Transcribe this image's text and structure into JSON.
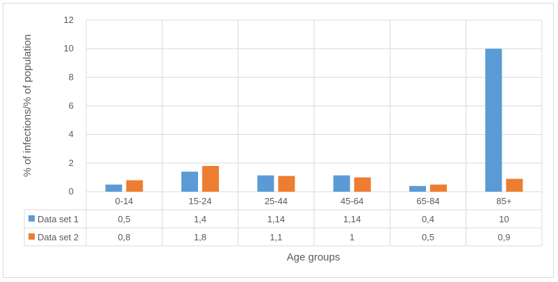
{
  "chart_data": {
    "type": "bar",
    "title": "",
    "xlabel": "Age groups",
    "ylabel": "% of infections/% of population",
    "categories": [
      "0-14",
      "15-24",
      "25-44",
      "45-64",
      "65-84",
      "85+"
    ],
    "series": [
      {
        "name": "Data set 1",
        "color": "#5b9bd5",
        "values": [
          0.5,
          1.4,
          1.14,
          1.14,
          0.4,
          10
        ],
        "labels": [
          "0,5",
          "1,4",
          "1,14",
          "1,14",
          "0,4",
          "10"
        ]
      },
      {
        "name": "Data set 2",
        "color": "#ed7d31",
        "values": [
          0.8,
          1.8,
          1.1,
          1,
          0.5,
          0.9
        ],
        "labels": [
          "0,8",
          "1,8",
          "1,1",
          "1",
          "0,5",
          "0,9"
        ]
      }
    ],
    "ylim": [
      0,
      12
    ],
    "yticks": [
      0,
      2,
      4,
      6,
      8,
      10,
      12
    ],
    "grid": true,
    "data_table": true
  }
}
